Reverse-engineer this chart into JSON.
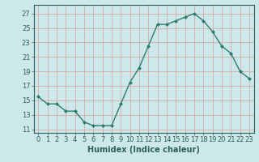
{
  "x": [
    0,
    1,
    2,
    3,
    4,
    5,
    6,
    7,
    8,
    9,
    10,
    11,
    12,
    13,
    14,
    15,
    16,
    17,
    18,
    19,
    20,
    21,
    22,
    23
  ],
  "y": [
    15.5,
    14.5,
    14.5,
    13.5,
    13.5,
    12.0,
    11.5,
    11.5,
    11.5,
    14.5,
    17.5,
    19.5,
    22.5,
    25.5,
    25.5,
    26.0,
    26.5,
    27.0,
    26.0,
    24.5,
    22.5,
    21.5,
    19.0,
    18.0
  ],
  "line_color": "#2d7d6e",
  "marker": "D",
  "marker_size": 2.0,
  "bg_color": "#cce8e8",
  "grid_color_minor": "#d8a0a0",
  "grid_color_major": "#d8a0a0",
  "xlabel": "Humidex (Indice chaleur)",
  "ylabel_ticks": [
    11,
    13,
    15,
    17,
    19,
    21,
    23,
    25,
    27
  ],
  "xtick_labels": [
    "0",
    "1",
    "2",
    "3",
    "4",
    "5",
    "6",
    "7",
    "8",
    "9",
    "10",
    "11",
    "12",
    "13",
    "14",
    "15",
    "16",
    "17",
    "18",
    "19",
    "20",
    "21",
    "22",
    "23"
  ],
  "ylim": [
    10.5,
    28.2
  ],
  "xlim": [
    -0.5,
    23.5
  ],
  "font_color": "#2d5f5f",
  "label_fontsize": 7.0,
  "tick_fontsize": 6.0,
  "line_width": 1.0
}
